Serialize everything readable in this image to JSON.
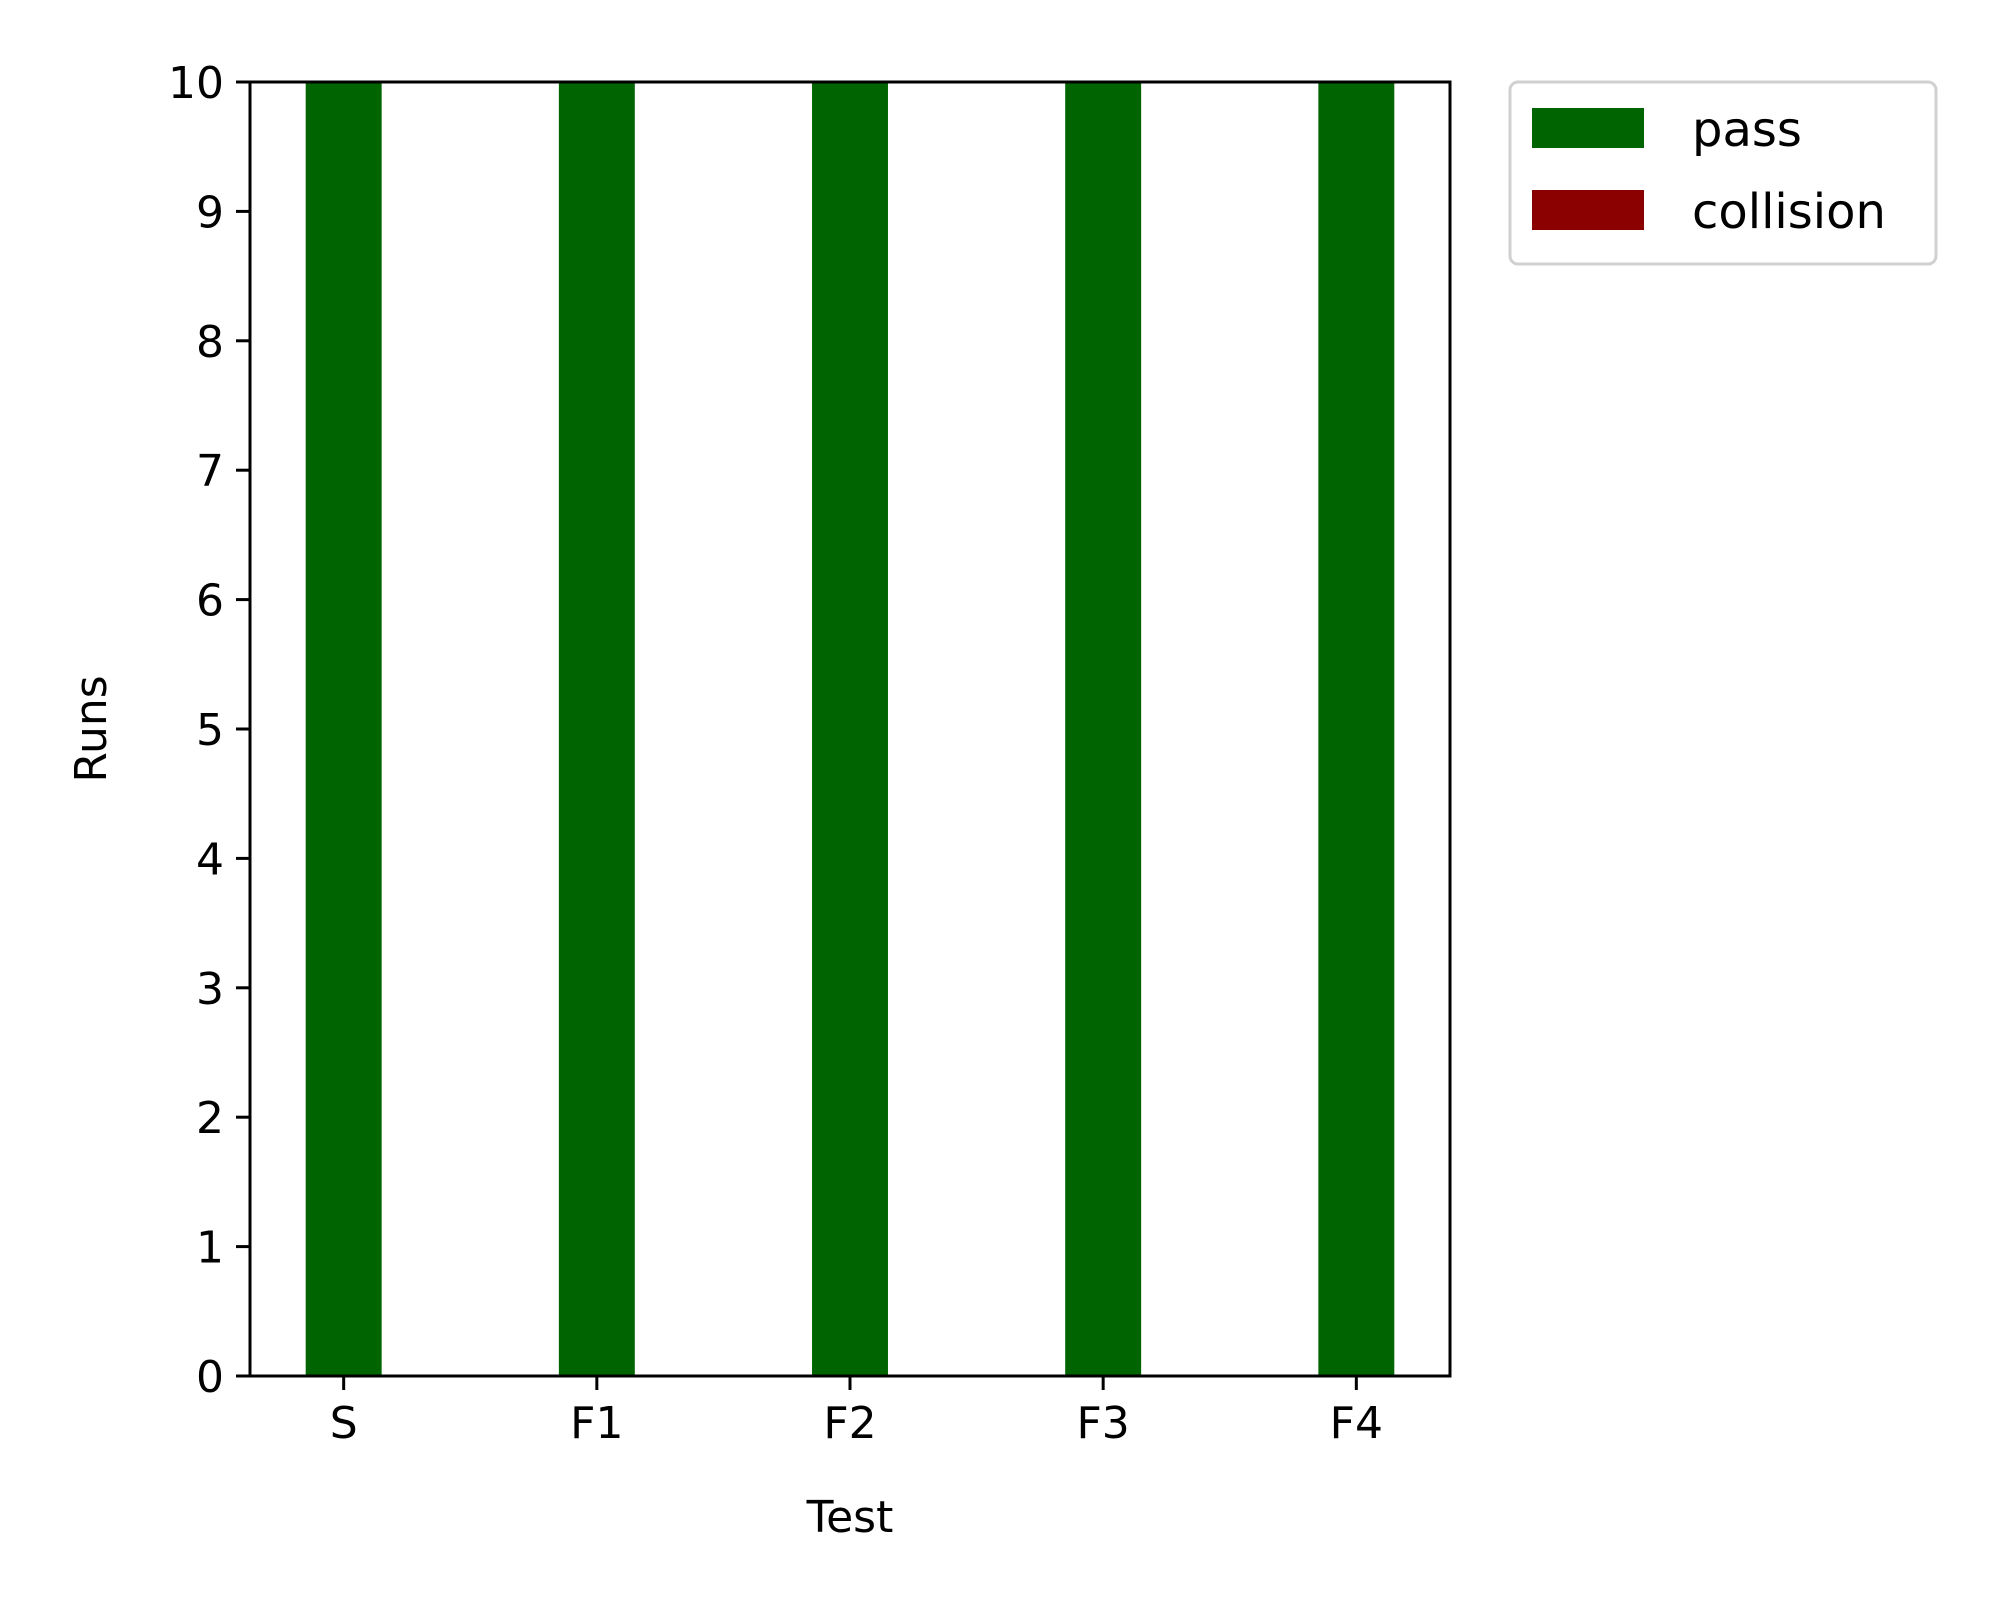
{
  "chart_data": {
    "type": "bar",
    "stacked": true,
    "categories": [
      "S",
      "F1",
      "F2",
      "F3",
      "F4"
    ],
    "series": [
      {
        "name": "pass",
        "color": "#006400",
        "values": [
          10,
          10,
          10,
          10,
          10
        ]
      },
      {
        "name": "collision",
        "color": "#8b0000",
        "values": [
          0,
          0,
          0,
          0,
          0
        ]
      }
    ],
    "xlabel": "Test",
    "ylabel": "Runs",
    "ylim": [
      0,
      10
    ],
    "yticks": [
      0,
      1,
      2,
      3,
      4,
      5,
      6,
      7,
      8,
      9,
      10
    ],
    "grid": false,
    "legend_position": "outside-top-right"
  }
}
